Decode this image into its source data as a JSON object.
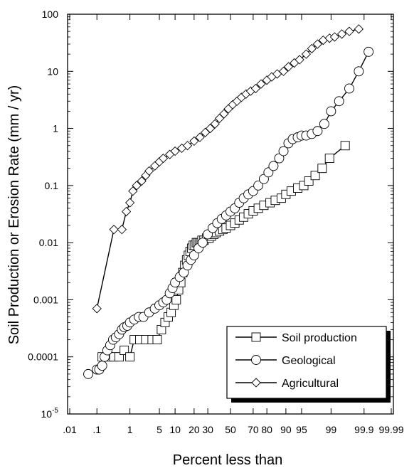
{
  "chart_data": {
    "type": "scatter",
    "title": "",
    "xlabel": "Percent less than",
    "ylabel": "Soil Production or Erosion Rate (mm / yr)",
    "x_scale": "probability",
    "y_scale": "log",
    "xlim": [
      0.01,
      99.99
    ],
    "ylim": [
      1e-05,
      100
    ],
    "grid": false,
    "legend_position": "bottom-right",
    "x_ticks": [
      {
        "value": 0.01,
        "label": ".01"
      },
      {
        "value": 0.1,
        "label": ".1"
      },
      {
        "value": 1,
        "label": "1"
      },
      {
        "value": 5,
        "label": "5"
      },
      {
        "value": 10,
        "label": "10"
      },
      {
        "value": 20,
        "label": "20"
      },
      {
        "value": 30,
        "label": "30"
      },
      {
        "value": 50,
        "label": "50"
      },
      {
        "value": 70,
        "label": "70"
      },
      {
        "value": 80,
        "label": "80"
      },
      {
        "value": 90,
        "label": "90"
      },
      {
        "value": 95,
        "label": "95"
      },
      {
        "value": 99,
        "label": "99"
      },
      {
        "value": 99.9,
        "label": "99.9"
      },
      {
        "value": 99.99,
        "label": "99.99"
      }
    ],
    "y_ticks": [
      {
        "value": 100,
        "label": "100"
      },
      {
        "value": 10,
        "label": "10"
      },
      {
        "value": 1,
        "label": "1"
      },
      {
        "value": 0.1,
        "label": "0.1"
      },
      {
        "value": 0.01,
        "label": "0.01"
      },
      {
        "value": 0.001,
        "label": "0.001"
      },
      {
        "value": 0.0001,
        "label": "0.0001"
      },
      {
        "value": 1e-05,
        "label": "10",
        "exponent": "-5"
      }
    ],
    "series": [
      {
        "name": "Soil production",
        "marker": "square",
        "x": [
          0.15,
          0.25,
          0.35,
          0.5,
          0.7,
          1,
          1.3,
          1.8,
          2.5,
          3.5,
          4.5,
          5.5,
          6.5,
          7.5,
          8.5,
          9.5,
          10.5,
          11.5,
          12.5,
          13.5,
          14.5,
          15.5,
          16.5,
          17.5,
          18.5,
          19.5,
          20.5,
          21.5,
          22.5,
          23.5,
          24.5,
          25.5,
          27,
          29,
          31,
          33,
          35,
          37,
          40,
          43,
          46,
          50,
          54,
          58,
          62,
          66,
          70,
          74,
          78,
          82,
          85,
          88,
          90,
          92,
          94,
          95.5,
          96.5,
          97.5,
          98.3,
          98.9,
          99.6
        ],
        "y": [
          0.0001,
          0.0001,
          0.0001,
          0.0001,
          0.00013,
          0.0001,
          0.0002,
          0.0002,
          0.0002,
          0.0002,
          0.0002,
          0.0003,
          0.0004,
          0.0005,
          0.0006,
          0.0008,
          0.001,
          0.0015,
          0.002,
          0.003,
          0.004,
          0.005,
          0.006,
          0.007,
          0.008,
          0.009,
          0.009,
          0.01,
          0.01,
          0.01,
          0.01,
          0.011,
          0.011,
          0.012,
          0.012,
          0.013,
          0.014,
          0.015,
          0.016,
          0.017,
          0.018,
          0.02,
          0.022,
          0.025,
          0.028,
          0.032,
          0.036,
          0.04,
          0.045,
          0.05,
          0.055,
          0.06,
          0.07,
          0.08,
          0.09,
          0.1,
          0.12,
          0.15,
          0.2,
          0.3,
          0.5
        ]
      },
      {
        "name": "Geological",
        "marker": "circle",
        "x": [
          0.05,
          0.1,
          0.12,
          0.15,
          0.18,
          0.22,
          0.27,
          0.33,
          0.4,
          0.5,
          0.6,
          0.7,
          0.85,
          1,
          1.3,
          1.7,
          2.2,
          3,
          4,
          5,
          6,
          7,
          8,
          9,
          10,
          12,
          14,
          16,
          18,
          20,
          23,
          26,
          30,
          34,
          38,
          42,
          46,
          50,
          54,
          58,
          62,
          66,
          70,
          74,
          78,
          81,
          84,
          87,
          89,
          91,
          92.5,
          94,
          95,
          96,
          97,
          97.8,
          98.5,
          99,
          99.4,
          99.7,
          99.85,
          99.93
        ],
        "y": [
          5e-05,
          6e-05,
          6e-05,
          7e-05,
          0.0001,
          0.00013,
          0.00016,
          0.0002,
          0.00022,
          0.00025,
          0.0003,
          0.00033,
          0.00035,
          0.0004,
          0.00045,
          0.0005,
          0.0005,
          0.0006,
          0.0007,
          0.0008,
          0.0009,
          0.001,
          0.0013,
          0.0016,
          0.002,
          0.0025,
          0.003,
          0.004,
          0.005,
          0.006,
          0.008,
          0.01,
          0.014,
          0.018,
          0.022,
          0.026,
          0.03,
          0.035,
          0.04,
          0.05,
          0.06,
          0.07,
          0.08,
          0.1,
          0.13,
          0.17,
          0.22,
          0.3,
          0.4,
          0.55,
          0.65,
          0.7,
          0.75,
          0.75,
          0.8,
          0.9,
          1.2,
          2,
          3,
          5,
          10,
          22
        ]
      },
      {
        "name": "Agricultural",
        "marker": "diamond",
        "x": [
          0.1,
          0.35,
          0.6,
          0.8,
          1,
          1.2,
          1.5,
          2,
          2.5,
          3,
          4,
          5,
          6,
          8,
          10,
          13,
          16,
          20,
          24,
          28,
          32,
          36,
          40,
          44,
          48,
          52,
          56,
          60,
          64,
          68,
          72,
          76,
          80,
          83,
          86,
          89,
          91,
          93,
          94.5,
          96,
          97,
          97.8,
          98.4,
          98.9,
          99.2,
          99.5,
          99.7,
          99.85
        ],
        "y": [
          0.0007,
          0.017,
          0.017,
          0.035,
          0.05,
          0.08,
          0.1,
          0.12,
          0.15,
          0.18,
          0.22,
          0.26,
          0.3,
          0.35,
          0.4,
          0.45,
          0.5,
          0.6,
          0.7,
          0.85,
          1,
          1.2,
          1.5,
          1.8,
          2.2,
          2.6,
          3,
          3.5,
          4,
          4.5,
          5,
          6,
          7,
          8,
          9,
          10,
          12,
          14,
          16,
          20,
          25,
          30,
          35,
          38,
          40,
          45,
          50,
          55
        ]
      }
    ]
  }
}
